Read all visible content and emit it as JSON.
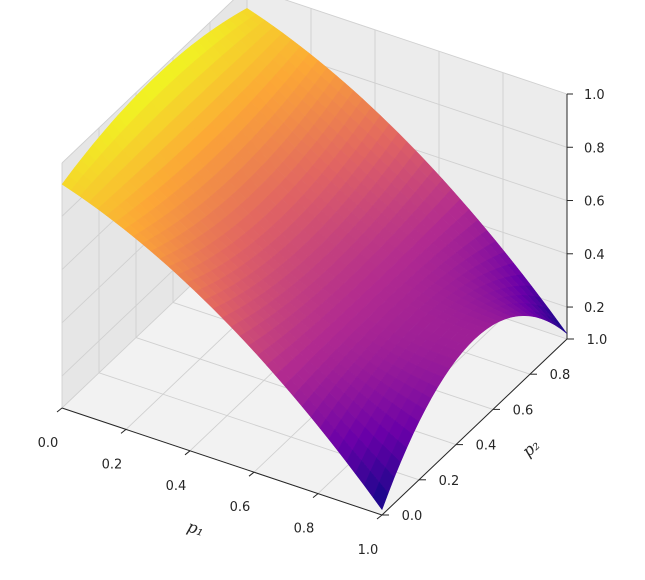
{
  "chart_data": {
    "type": "surface",
    "title": "",
    "xlabel": "p₁",
    "ylabel": "p₂",
    "zlabel": "",
    "xlim": [
      0,
      1
    ],
    "ylim": [
      0,
      1
    ],
    "zlim": [
      0.08,
      1.0
    ],
    "x_ticks": [
      0.0,
      0.2,
      0.4,
      0.6,
      0.8,
      1.0
    ],
    "x_tick_labels": [
      "0.0",
      "0.2",
      "0.4",
      "0.6",
      "0.8",
      "1.0"
    ],
    "y_ticks": [
      0.0,
      0.2,
      0.4,
      0.6,
      0.8,
      1.0
    ],
    "y_tick_labels": [
      "0.0",
      "0.2",
      "0.4",
      "0.6",
      "0.8",
      "1.0"
    ],
    "z_ticks": [
      0.2,
      0.4,
      0.6,
      0.8,
      1.0
    ],
    "z_tick_labels": [
      "0.2",
      "0.4",
      "0.6",
      "0.8",
      "1.0"
    ],
    "grid": true,
    "colormap": "plasma",
    "colormap_stops": [
      "#0d0887",
      "#6a00a8",
      "#b12a90",
      "#e16462",
      "#fca636",
      "#f0f921"
    ],
    "surface": {
      "x_range": [
        0,
        1
      ],
      "x_range_note": "",
      "y_range": [
        0,
        1
      ],
      "samples": [
        {
          "x": 0.0,
          "y": 0.0,
          "z": 0.92
        },
        {
          "x": 0.0,
          "y": 0.5,
          "z": 0.99
        },
        {
          "x": 0.0,
          "y": 1.0,
          "z": 0.92
        },
        {
          "x": 0.5,
          "y": 0.0,
          "z": 0.62
        },
        {
          "x": 0.5,
          "y": 0.5,
          "z": 0.54
        },
        {
          "x": 0.5,
          "y": 1.0,
          "z": 0.62
        },
        {
          "x": 1.0,
          "y": 0.0,
          "z": 0.1
        },
        {
          "x": 1.0,
          "y": 0.5,
          "z": 0.41
        },
        {
          "x": 1.0,
          "y": 1.0,
          "z": 0.1
        }
      ]
    }
  }
}
